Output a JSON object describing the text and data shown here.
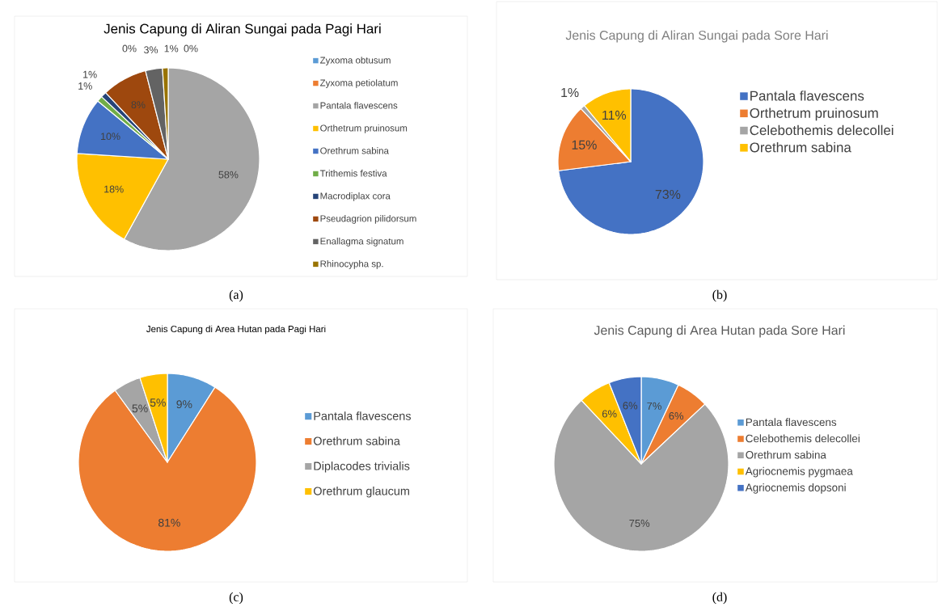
{
  "chart_data": [
    {
      "type": "pie",
      "title": "Jenis Capung di Aliran Sungai pada Pagi Hari",
      "categories": [
        "Zyxoma obtusum",
        "Zyxoma petiolatum",
        "Pantala flavescens",
        "Orthetrum pruinosum",
        "Orethrum sabina",
        "Trithemis festiva",
        "Macrodiplax cora",
        "Pseudagrion pilidorsum",
        "Enallagma signatum",
        "Rhinocypha sp."
      ],
      "values": [
        0,
        0,
        58,
        18,
        10,
        1,
        1,
        8,
        3,
        1
      ],
      "value_labels": [
        "0%",
        "0%",
        "58%",
        "18%",
        "10%",
        "1%",
        "1%",
        "8%",
        "3%",
        "1%"
      ],
      "colors": [
        "#5b9bd5",
        "#ed7d31",
        "#a5a5a5",
        "#ffc000",
        "#4472c4",
        "#70ad47",
        "#264478",
        "#9e480e",
        "#636363",
        "#997300"
      ],
      "legend": "right",
      "annotations": [
        "(a)"
      ]
    },
    {
      "type": "pie",
      "title": "Jenis Capung di Aliran Sungai pada Sore Hari",
      "categories": [
        "Pantala flavescens",
        "Orthetrum pruinosum",
        "Celebothemis delecollei",
        "Orethrum sabina"
      ],
      "values": [
        73,
        15,
        1,
        11
      ],
      "value_labels": [
        "73%",
        "15%",
        "1%",
        "11%"
      ],
      "colors": [
        "#4472c4",
        "#ed7d31",
        "#a5a5a5",
        "#ffc000"
      ],
      "legend": "right",
      "annotations": [
        "(b)"
      ]
    },
    {
      "type": "pie",
      "title": "Jenis Capung di Area Hutan pada Pagi Hari",
      "categories": [
        "Pantala flavescens",
        "Orethrum sabina",
        "Diplacodes trivialis",
        "Orethrum glaucum"
      ],
      "values": [
        9,
        81,
        5,
        5
      ],
      "value_labels": [
        "9%",
        "81%",
        "5%",
        "5%"
      ],
      "colors": [
        "#5b9bd5",
        "#ed7d31",
        "#a5a5a5",
        "#ffc000"
      ],
      "legend": "right",
      "annotations": [
        "(c)"
      ]
    },
    {
      "type": "pie",
      "title": "Jenis Capung di Area Hutan pada Sore Hari",
      "categories": [
        "Pantala flavescens",
        "Celebothemis delecollei",
        "Orethrum sabina",
        "Agriocnemis pygmaea",
        "Agriocnemis dopsoni"
      ],
      "values": [
        7,
        6,
        75,
        6,
        6
      ],
      "value_labels": [
        "7%",
        "6%",
        "75%",
        "6%",
        "6%"
      ],
      "colors": [
        "#5b9bd5",
        "#ed7d31",
        "#a5a5a5",
        "#ffc000",
        "#4472c4"
      ],
      "legend": "right",
      "annotations": [
        "(d)"
      ]
    }
  ]
}
